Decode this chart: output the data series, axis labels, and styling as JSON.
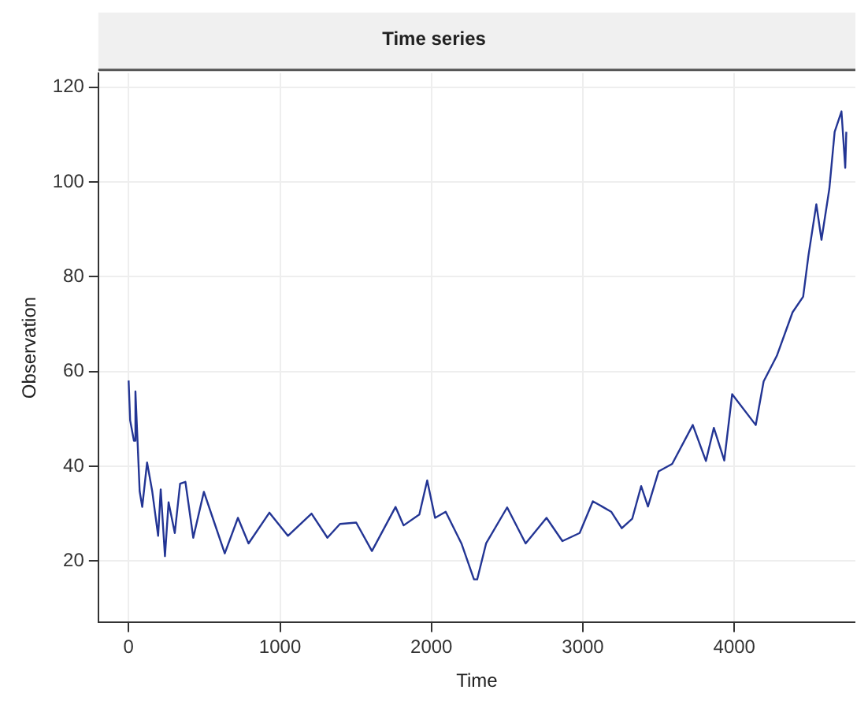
{
  "chart_data": {
    "type": "line",
    "title": "Time series",
    "xlabel": "Time",
    "ylabel": "Observation",
    "xlim": [
      -200,
      4800
    ],
    "ylim": [
      7,
      123
    ],
    "xticks": [
      0,
      1000,
      2000,
      3000,
      4000
    ],
    "yticks": [
      20,
      40,
      60,
      80,
      100,
      120
    ],
    "grid": true,
    "marker": "none",
    "line_style": "solid",
    "series": [
      {
        "color": "#233594",
        "x": [
          0,
          10,
          35,
          45,
          73,
          90,
          122,
          156,
          195,
          212,
          240,
          264,
          305,
          340,
          375,
          427,
          497,
          566,
          635,
          722,
          792,
          930,
          1052,
          1208,
          1313,
          1396,
          1503,
          1607,
          1763,
          1816,
          1920,
          1972,
          2024,
          2094,
          2198,
          2281,
          2302,
          2361,
          2500,
          2622,
          2760,
          2865,
          2979,
          3066,
          3187,
          3257,
          3326,
          3385,
          3430,
          3500,
          3590,
          3726,
          3813,
          3865,
          3934,
          3986,
          4142,
          4194,
          4281,
          4385,
          4455,
          4490,
          4542,
          4576,
          4628,
          4663,
          4708,
          4733,
          4740
        ],
        "values": [
          58.1,
          49.7,
          45.4,
          55.8,
          34.7,
          31.4,
          40.8,
          34.7,
          25.3,
          35.1,
          21,
          32.4,
          25.9,
          36.3,
          36.7,
          24.9,
          34.6,
          28.1,
          21.6,
          29.1,
          23.7,
          30.2,
          25.3,
          30,
          24.9,
          27.8,
          28.1,
          22.1,
          31.4,
          27.5,
          29.8,
          37,
          29.1,
          30.4,
          23.7,
          16.1,
          16.1,
          23.7,
          31.3,
          23.7,
          29.1,
          24.2,
          25.9,
          32.6,
          30.4,
          26.9,
          28.9,
          35.8,
          31.5,
          38.9,
          40.5,
          48.7,
          41.1,
          48.1,
          41.2,
          55.2,
          48.7,
          57.9,
          63.3,
          72.5,
          75.8,
          84.5,
          95.3,
          87.8,
          98.6,
          110.6,
          114.9,
          103,
          110.6
        ]
      }
    ]
  }
}
